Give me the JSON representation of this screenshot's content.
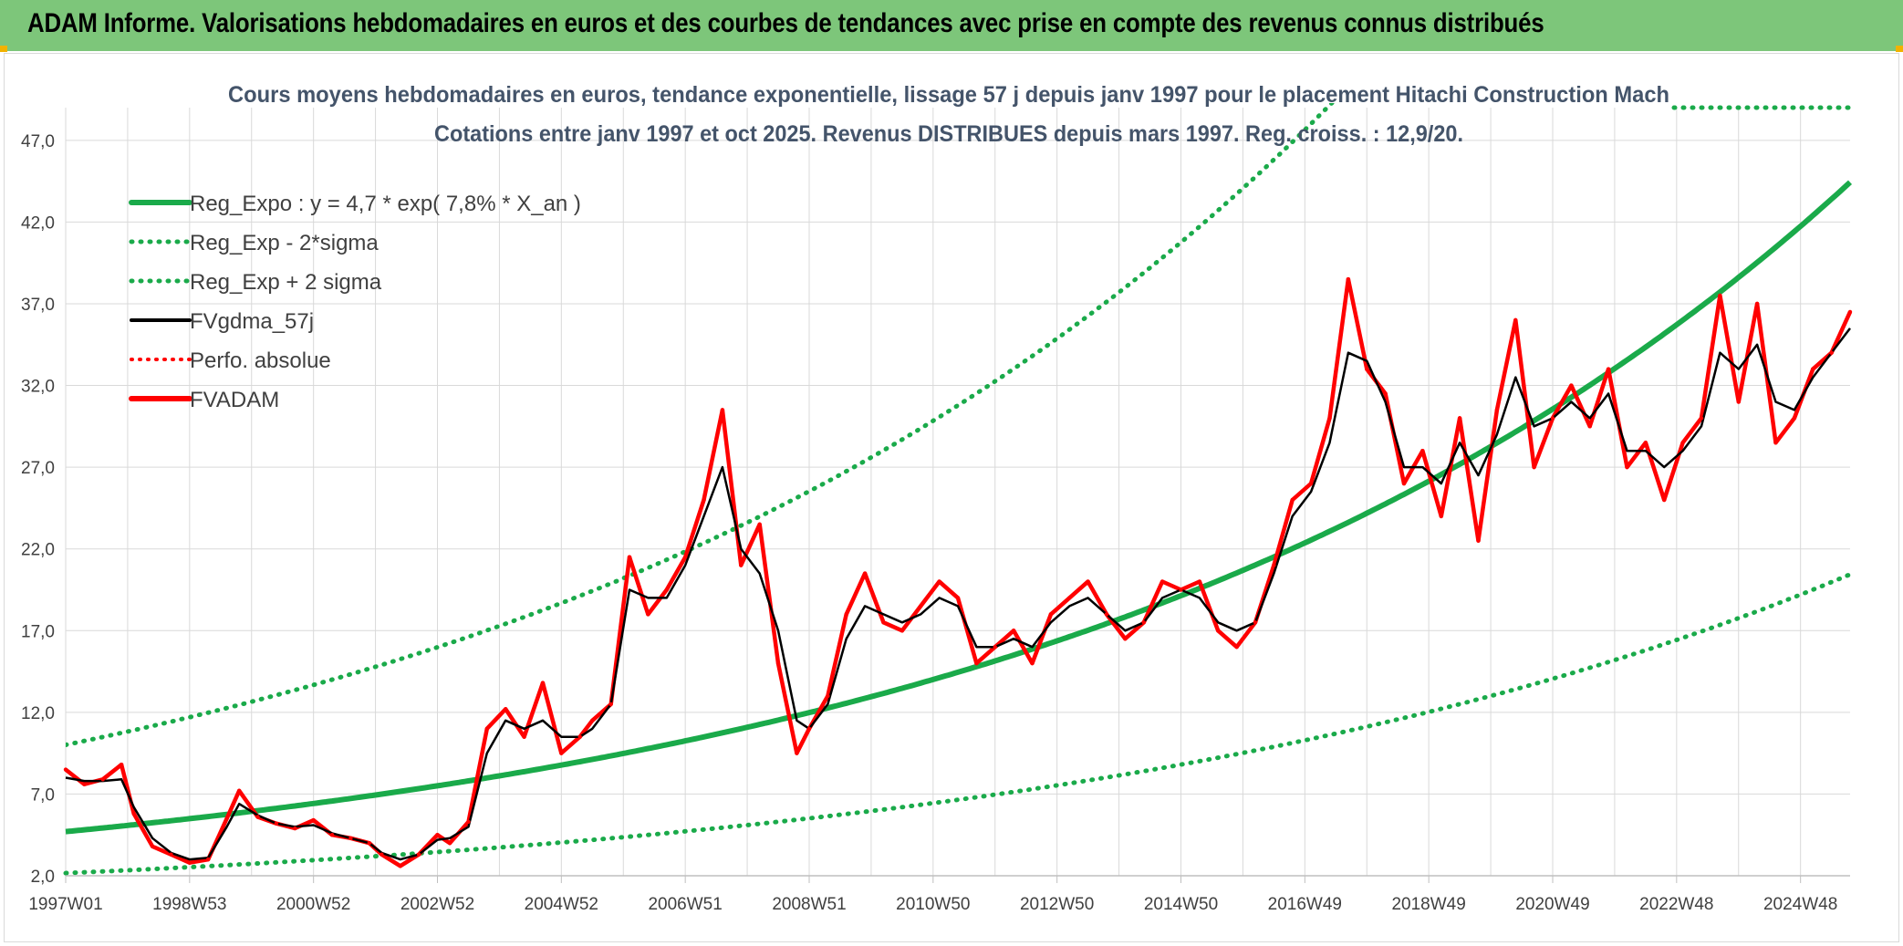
{
  "banner": {
    "title": "ADAM Informe. Valorisations hebdomadaires en euros et des courbes de tendances avec prise en compte des revenus connus distribués"
  },
  "colors": {
    "banner": "#7dc67a",
    "trend": "#1aaa4a",
    "price": "#ff0000",
    "smooth": "#000000",
    "grid": "#d9d9d9",
    "title": "#44546a"
  },
  "chart_data": {
    "type": "line",
    "title": "Cours moyens hebdomadaires en euros, tendance exponentielle, lissage 57 j depuis janv 1997 pour le placement Hitachi Construction Mach",
    "subtitle": "Cotations entre janv 1997 et oct 2025. Revenus DISTRIBUES depuis mars 1997. Reg. croiss. : 12,9/20.",
    "xlabel": "",
    "ylabel": "",
    "ylim": [
      2.0,
      49.0
    ],
    "y_ticks": [
      "2,0",
      "7,0",
      "12,0",
      "17,0",
      "22,0",
      "27,0",
      "32,0",
      "37,0",
      "42,0",
      "47,0"
    ],
    "x_ticks": [
      "1997W01",
      "1998W53",
      "2000W52",
      "2002W52",
      "2004W52",
      "2006W51",
      "2008W51",
      "2010W50",
      "2012W50",
      "2014W50",
      "2016W49",
      "2018W49",
      "2020W49",
      "2022W48",
      "2024W48"
    ],
    "x_tick_years": [
      1997.0,
      1999.0,
      2001.0,
      2003.0,
      2005.0,
      2007.0,
      2009.0,
      2011.0,
      2013.0,
      2015.0,
      2017.0,
      2019.0,
      2021.0,
      2023.0,
      2025.0
    ],
    "x_range_years": [
      1997.0,
      2025.8
    ],
    "grid": true,
    "legend_position": "top-left",
    "legend": [
      "Reg_Expo : y = 4,7 * exp( 7,8% *  X_an )",
      "Reg_Exp - 2*sigma",
      "Reg_Exp + 2 sigma",
      "FVgdma_57j",
      "Perfo. absolue",
      "FVADAM"
    ],
    "regression": {
      "a": 4.7,
      "rate": 0.078,
      "sigma_factor_low": 0.46,
      "sigma_factor_high": 2.13
    },
    "series": [
      {
        "name": "FVADAM",
        "style": "solid-red",
        "x": [
          1997.0,
          1997.3,
          1997.6,
          1997.9,
          1998.1,
          1998.4,
          1998.7,
          1999.0,
          1999.3,
          1999.6,
          1999.8,
          2000.1,
          2000.4,
          2000.7,
          2001.0,
          2001.3,
          2001.6,
          2001.9,
          2002.1,
          2002.4,
          2002.7,
          2003.0,
          2003.2,
          2003.5,
          2003.8,
          2004.1,
          2004.4,
          2004.7,
          2005.0,
          2005.3,
          2005.5,
          2005.8,
          2006.1,
          2006.4,
          2006.7,
          2007.0,
          2007.3,
          2007.6,
          2007.9,
          2008.2,
          2008.5,
          2008.8,
          2009.0,
          2009.3,
          2009.6,
          2009.9,
          2010.2,
          2010.5,
          2010.8,
          2011.1,
          2011.4,
          2011.7,
          2012.0,
          2012.3,
          2012.6,
          2012.9,
          2013.2,
          2013.5,
          2013.8,
          2014.1,
          2014.4,
          2014.7,
          2015.0,
          2015.3,
          2015.6,
          2015.9,
          2016.2,
          2016.5,
          2016.8,
          2017.1,
          2017.4,
          2017.7,
          2018.0,
          2018.3,
          2018.6,
          2018.9,
          2019.2,
          2019.5,
          2019.8,
          2020.1,
          2020.4,
          2020.7,
          2021.0,
          2021.3,
          2021.6,
          2021.9,
          2022.2,
          2022.5,
          2022.8,
          2023.1,
          2023.4,
          2023.7,
          2024.0,
          2024.3,
          2024.6,
          2024.9,
          2025.2,
          2025.5,
          2025.8
        ],
        "values": [
          8.5,
          7.6,
          7.9,
          8.8,
          5.8,
          3.8,
          3.3,
          2.8,
          3.0,
          5.5,
          7.2,
          5.6,
          5.2,
          4.9,
          5.4,
          4.5,
          4.3,
          4.0,
          3.3,
          2.6,
          3.3,
          4.5,
          4.0,
          5.3,
          11.0,
          12.2,
          10.5,
          13.8,
          9.5,
          10.5,
          11.5,
          12.5,
          21.5,
          18.0,
          19.5,
          21.5,
          25.0,
          30.5,
          21.0,
          23.5,
          15.0,
          9.5,
          11.0,
          13.0,
          18.0,
          20.5,
          17.5,
          17.0,
          18.5,
          20.0,
          19.0,
          15.0,
          16.0,
          17.0,
          15.0,
          18.0,
          19.0,
          20.0,
          18.0,
          16.5,
          17.5,
          20.0,
          19.5,
          20.0,
          17.0,
          16.0,
          17.5,
          21.0,
          25.0,
          26.0,
          30.0,
          38.5,
          33.0,
          31.5,
          26.0,
          28.0,
          24.0,
          30.0,
          22.5,
          30.5,
          36.0,
          27.0,
          30.0,
          32.0,
          29.5,
          33.0,
          27.0,
          28.5,
          25.0,
          28.5,
          30.0,
          37.5,
          31.0,
          37.0,
          28.5,
          30.0,
          33.0,
          34.0,
          36.5
        ]
      },
      {
        "name": "FVgdma_57j",
        "style": "solid-black",
        "x": [
          1997.0,
          1997.3,
          1997.6,
          1997.9,
          1998.1,
          1998.4,
          1998.7,
          1999.0,
          1999.3,
          1999.6,
          1999.8,
          2000.1,
          2000.4,
          2000.7,
          2001.0,
          2001.3,
          2001.6,
          2001.9,
          2002.1,
          2002.4,
          2002.7,
          2003.0,
          2003.2,
          2003.5,
          2003.8,
          2004.1,
          2004.4,
          2004.7,
          2005.0,
          2005.3,
          2005.5,
          2005.8,
          2006.1,
          2006.4,
          2006.7,
          2007.0,
          2007.3,
          2007.6,
          2007.9,
          2008.2,
          2008.5,
          2008.8,
          2009.0,
          2009.3,
          2009.6,
          2009.9,
          2010.2,
          2010.5,
          2010.8,
          2011.1,
          2011.4,
          2011.7,
          2012.0,
          2012.3,
          2012.6,
          2012.9,
          2013.2,
          2013.5,
          2013.8,
          2014.1,
          2014.4,
          2014.7,
          2015.0,
          2015.3,
          2015.6,
          2015.9,
          2016.2,
          2016.5,
          2016.8,
          2017.1,
          2017.4,
          2017.7,
          2018.0,
          2018.3,
          2018.6,
          2018.9,
          2019.2,
          2019.5,
          2019.8,
          2020.1,
          2020.4,
          2020.7,
          2021.0,
          2021.3,
          2021.6,
          2021.9,
          2022.2,
          2022.5,
          2022.8,
          2023.1,
          2023.4,
          2023.7,
          2024.0,
          2024.3,
          2024.6,
          2024.9,
          2025.2,
          2025.5,
          2025.8
        ],
        "values": [
          8.0,
          7.8,
          7.8,
          7.9,
          6.2,
          4.3,
          3.4,
          3.0,
          3.1,
          5.0,
          6.4,
          5.7,
          5.2,
          5.0,
          5.1,
          4.6,
          4.3,
          4.0,
          3.4,
          3.0,
          3.3,
          4.2,
          4.3,
          5.0,
          9.5,
          11.5,
          11.0,
          11.5,
          10.5,
          10.5,
          11.0,
          12.5,
          19.5,
          19.0,
          19.0,
          21.0,
          24.0,
          27.0,
          22.0,
          20.5,
          17.0,
          11.5,
          11.0,
          12.5,
          16.5,
          18.5,
          18.0,
          17.5,
          18.0,
          19.0,
          18.5,
          16.0,
          16.0,
          16.5,
          16.0,
          17.5,
          18.5,
          19.0,
          18.0,
          17.0,
          17.5,
          19.0,
          19.5,
          19.0,
          17.5,
          17.0,
          17.5,
          20.5,
          24.0,
          25.5,
          28.5,
          34.0,
          33.5,
          31.0,
          27.0,
          27.0,
          26.0,
          28.5,
          26.5,
          29.0,
          32.5,
          29.5,
          30.0,
          31.0,
          30.0,
          31.5,
          28.0,
          28.0,
          27.0,
          28.0,
          29.5,
          34.0,
          33.0,
          34.5,
          31.0,
          30.5,
          32.5,
          34.0,
          35.5
        ]
      },
      {
        "name": "Reg_Expo : y = 4,7 * exp( 7,8% *  X_an )",
        "style": "solid-green"
      },
      {
        "name": "Reg_Exp - 2*sigma",
        "style": "dotted-green"
      },
      {
        "name": "Reg_Exp + 2 sigma",
        "style": "dotted-green"
      },
      {
        "name": "Perfo. absolue",
        "style": "dotted-red"
      }
    ]
  }
}
